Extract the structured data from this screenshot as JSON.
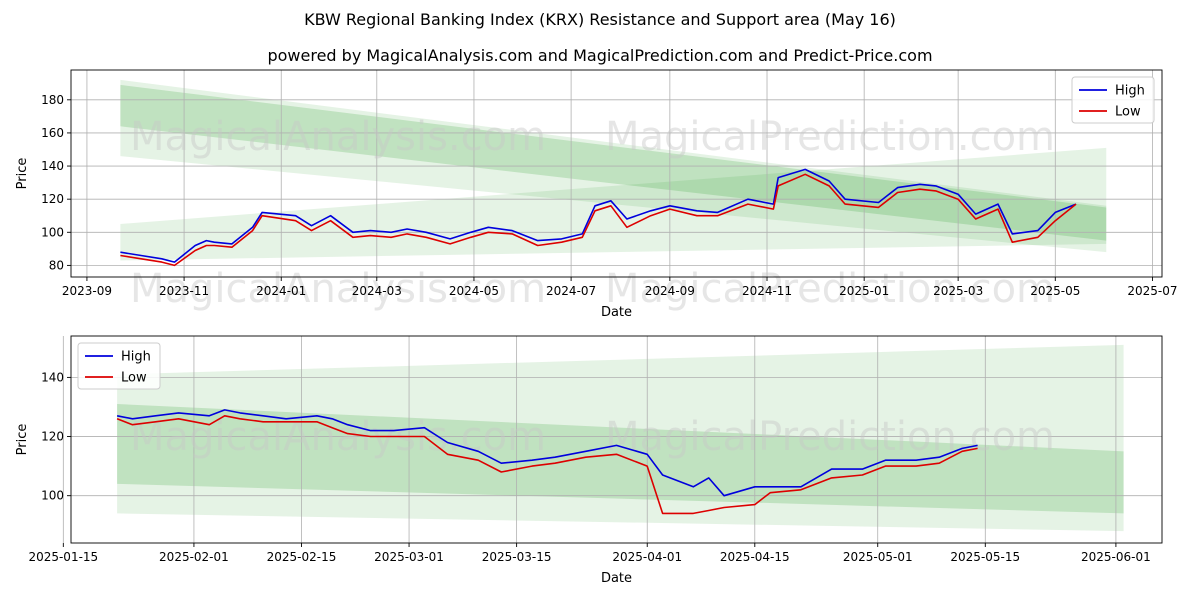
{
  "title": "KBW Regional Banking Index (KRX) Resistance and Support area (May 16)",
  "subtitle": "powered by MagicalAnalysis.com and MagicalPrediction.com and Predict-Price.com",
  "watermarks": [
    "MagicalAnalysis.com",
    "MagicalPrediction.com"
  ],
  "colors": {
    "high": "#0000dd",
    "low": "#dd0000",
    "band": "#2ca02c",
    "grid": "#b0b0b0"
  },
  "chart_data": [
    {
      "type": "line",
      "name": "full-history",
      "xlabel": "Date",
      "ylabel": "Price",
      "grid": true,
      "legend_position": "top-right",
      "xlim": [
        "2023-08-22",
        "2025-07-07"
      ],
      "ylim": [
        73,
        198
      ],
      "x_ticks": [
        "2023-09",
        "2023-11",
        "2024-01",
        "2024-03",
        "2024-05",
        "2024-07",
        "2024-09",
        "2024-11",
        "2025-01",
        "2025-03",
        "2025-05",
        "2025-07"
      ],
      "x_tick_dates": [
        "2023-09-01",
        "2023-11-01",
        "2024-01-01",
        "2024-03-01",
        "2024-05-01",
        "2024-07-01",
        "2024-09-01",
        "2024-11-01",
        "2025-01-01",
        "2025-03-01",
        "2025-05-01",
        "2025-07-01"
      ],
      "y_ticks": [
        80,
        100,
        120,
        140,
        160,
        180
      ],
      "bands": [
        {
          "name": "resistance-outer",
          "x": [
            "2023-09-22",
            "2025-06-02"
          ],
          "upper": [
            192,
            116
          ],
          "lower": [
            146,
            88
          ],
          "opacity": 0.12
        },
        {
          "name": "resistance-inner",
          "x": [
            "2023-09-22",
            "2025-06-02"
          ],
          "upper": [
            189,
            115
          ],
          "lower": [
            164,
            95
          ],
          "opacity": 0.2
        },
        {
          "name": "support-outer",
          "x": [
            "2023-09-22",
            "2025-06-02"
          ],
          "upper": [
            105,
            151
          ],
          "lower": [
            83,
            93
          ],
          "opacity": 0.12
        }
      ],
      "series": [
        {
          "name": "High",
          "x": [
            "2023-09-22",
            "2023-10-05",
            "2023-10-18",
            "2023-10-26",
            "2023-11-08",
            "2023-11-15",
            "2023-11-20",
            "2023-12-01",
            "2023-12-14",
            "2023-12-20",
            "2024-01-10",
            "2024-01-20",
            "2024-02-01",
            "2024-02-15",
            "2024-02-26",
            "2024-03-10",
            "2024-03-20",
            "2024-04-01",
            "2024-04-16",
            "2024-04-29",
            "2024-05-10",
            "2024-05-25",
            "2024-06-10",
            "2024-06-25",
            "2024-07-08",
            "2024-07-16",
            "2024-07-26",
            "2024-08-05",
            "2024-08-20",
            "2024-09-01",
            "2024-09-18",
            "2024-10-01",
            "2024-10-20",
            "2024-11-05",
            "2024-11-08",
            "2024-11-25",
            "2024-12-10",
            "2024-12-20",
            "2025-01-10",
            "2025-01-22",
            "2025-02-05",
            "2025-02-15",
            "2025-03-01",
            "2025-03-12",
            "2025-03-26",
            "2025-04-04",
            "2025-04-20",
            "2025-05-01",
            "2025-05-14"
          ],
          "values": [
            88,
            86,
            84,
            82,
            92,
            95,
            94,
            93,
            103,
            112,
            110,
            104,
            110,
            100,
            101,
            100,
            102,
            100,
            96,
            100,
            103,
            101,
            95,
            96,
            99,
            116,
            119,
            108,
            113,
            116,
            113,
            112,
            120,
            117,
            133,
            138,
            131,
            120,
            118,
            127,
            129,
            128,
            123,
            111,
            117,
            99,
            101,
            112,
            117
          ]
        },
        {
          "name": "Low",
          "x": [
            "2023-09-22",
            "2023-10-05",
            "2023-10-18",
            "2023-10-26",
            "2023-11-08",
            "2023-11-15",
            "2023-11-20",
            "2023-12-01",
            "2023-12-14",
            "2023-12-20",
            "2024-01-10",
            "2024-01-20",
            "2024-02-01",
            "2024-02-15",
            "2024-02-26",
            "2024-03-10",
            "2024-03-20",
            "2024-04-01",
            "2024-04-16",
            "2024-04-29",
            "2024-05-10",
            "2024-05-25",
            "2024-06-10",
            "2024-06-25",
            "2024-07-08",
            "2024-07-16",
            "2024-07-26",
            "2024-08-05",
            "2024-08-20",
            "2024-09-01",
            "2024-09-18",
            "2024-10-01",
            "2024-10-20",
            "2024-11-05",
            "2024-11-08",
            "2024-11-25",
            "2024-12-10",
            "2024-12-20",
            "2025-01-10",
            "2025-01-22",
            "2025-02-05",
            "2025-02-15",
            "2025-03-01",
            "2025-03-12",
            "2025-03-26",
            "2025-04-04",
            "2025-04-20",
            "2025-05-01",
            "2025-05-14"
          ],
          "values": [
            86,
            84,
            82,
            80,
            89,
            92,
            92,
            91,
            101,
            110,
            107,
            101,
            107,
            97,
            98,
            97,
            99,
            97,
            93,
            97,
            100,
            99,
            92,
            94,
            97,
            113,
            116,
            103,
            110,
            114,
            110,
            110,
            117,
            114,
            128,
            135,
            128,
            117,
            115,
            124,
            126,
            125,
            120,
            108,
            114,
            94,
            97,
            107,
            117
          ]
        }
      ]
    },
    {
      "type": "line",
      "name": "recent-zoom",
      "xlabel": "Date",
      "ylabel": "Price",
      "grid": true,
      "legend_position": "top-left",
      "xlim": [
        "2025-01-16",
        "2025-06-07"
      ],
      "ylim": [
        84,
        154
      ],
      "x_ticks": [
        "2025-01-15",
        "2025-02-01",
        "2025-02-15",
        "2025-03-01",
        "2025-03-15",
        "2025-04-01",
        "2025-04-15",
        "2025-05-01",
        "2025-05-15",
        "2025-06-01"
      ],
      "y_ticks": [
        100,
        120,
        140
      ],
      "bands": [
        {
          "name": "resistance-outer",
          "x": [
            "2025-01-22",
            "2025-06-02"
          ],
          "upper": [
            141,
            151
          ],
          "lower": [
            94,
            88
          ],
          "opacity": 0.12
        },
        {
          "name": "resistance-inner",
          "x": [
            "2025-01-22",
            "2025-06-02"
          ],
          "upper": [
            131,
            115
          ],
          "lower": [
            104,
            94
          ],
          "opacity": 0.2
        }
      ],
      "series": [
        {
          "name": "High",
          "x": [
            "2025-01-22",
            "2025-01-24",
            "2025-01-27",
            "2025-01-30",
            "2025-02-03",
            "2025-02-05",
            "2025-02-07",
            "2025-02-10",
            "2025-02-13",
            "2025-02-17",
            "2025-02-19",
            "2025-02-21",
            "2025-02-24",
            "2025-02-27",
            "2025-03-03",
            "2025-03-06",
            "2025-03-10",
            "2025-03-13",
            "2025-03-17",
            "2025-03-20",
            "2025-03-24",
            "2025-03-28",
            "2025-04-01",
            "2025-04-03",
            "2025-04-07",
            "2025-04-09",
            "2025-04-11",
            "2025-04-15",
            "2025-04-17",
            "2025-04-21",
            "2025-04-25",
            "2025-04-29",
            "2025-05-02",
            "2025-05-06",
            "2025-05-09",
            "2025-05-12",
            "2025-05-14"
          ],
          "values": [
            127,
            126,
            127,
            128,
            127,
            129,
            128,
            127,
            126,
            127,
            126,
            124,
            122,
            122,
            123,
            118,
            115,
            111,
            112,
            113,
            115,
            117,
            114,
            107,
            103,
            106,
            100,
            103,
            103,
            103,
            109,
            109,
            112,
            112,
            113,
            116,
            117
          ]
        },
        {
          "name": "Low",
          "x": [
            "2025-01-22",
            "2025-01-24",
            "2025-01-27",
            "2025-01-30",
            "2025-02-03",
            "2025-02-05",
            "2025-02-07",
            "2025-02-10",
            "2025-02-13",
            "2025-02-17",
            "2025-02-19",
            "2025-02-21",
            "2025-02-24",
            "2025-02-27",
            "2025-03-03",
            "2025-03-06",
            "2025-03-10",
            "2025-03-13",
            "2025-03-17",
            "2025-03-20",
            "2025-03-24",
            "2025-03-28",
            "2025-04-01",
            "2025-04-03",
            "2025-04-07",
            "2025-04-09",
            "2025-04-11",
            "2025-04-15",
            "2025-04-17",
            "2025-04-21",
            "2025-04-25",
            "2025-04-29",
            "2025-05-02",
            "2025-05-06",
            "2025-05-09",
            "2025-05-12",
            "2025-05-14"
          ],
          "values": [
            126,
            124,
            125,
            126,
            124,
            127,
            126,
            125,
            125,
            125,
            123,
            121,
            120,
            120,
            120,
            114,
            112,
            108,
            110,
            111,
            113,
            114,
            110,
            94,
            94,
            95,
            96,
            97,
            101,
            102,
            106,
            107,
            110,
            110,
            111,
            115,
            116
          ]
        }
      ]
    }
  ]
}
